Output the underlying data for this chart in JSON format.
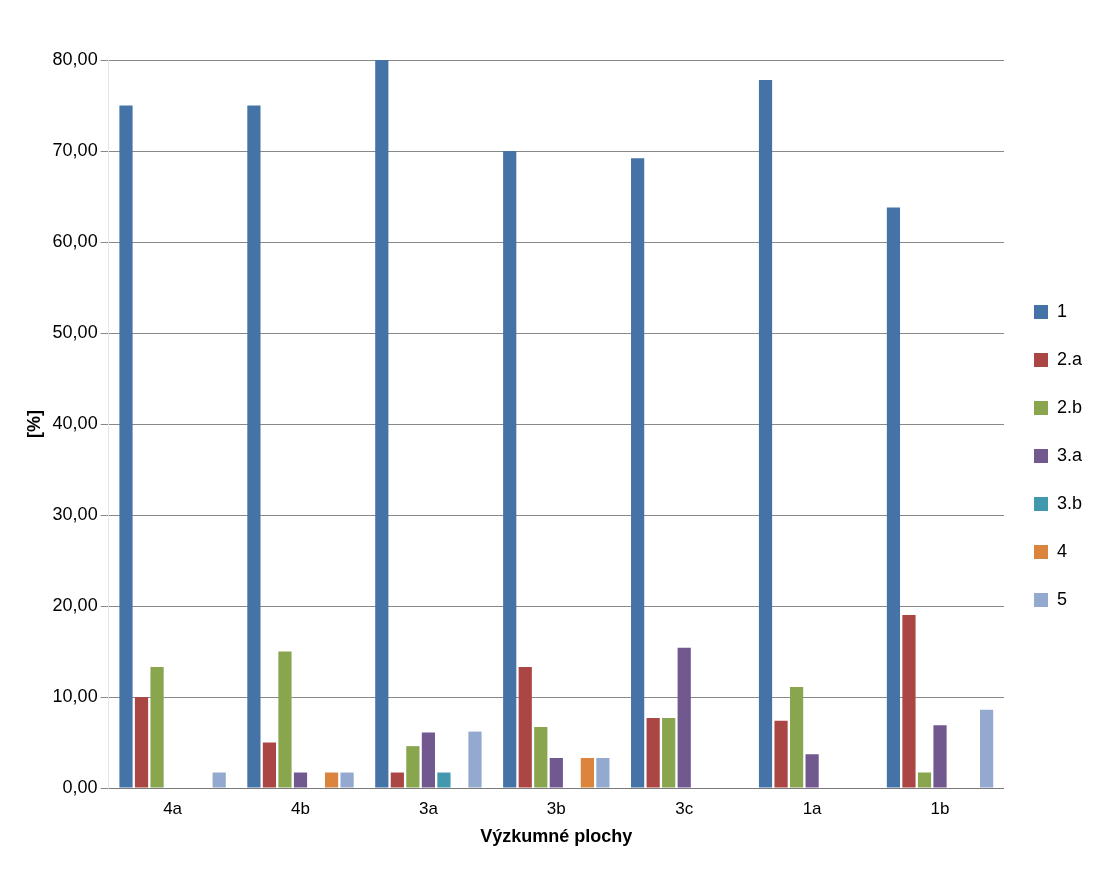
{
  "chart_data": {
    "type": "bar",
    "xlabel": "Výzkumné plochy",
    "ylabel": "[%]",
    "categories": [
      "4a",
      "4b",
      "3a",
      "3b",
      "3c",
      "1a",
      "1b"
    ],
    "series": [
      {
        "name": "1",
        "color": "#4572a7",
        "values": [
          75,
          75,
          80,
          70,
          69.2,
          77.8,
          63.8
        ]
      },
      {
        "name": "2.a",
        "color": "#aa4643",
        "values": [
          10,
          5,
          1.7,
          13.3,
          7.7,
          7.4,
          19
        ]
      },
      {
        "name": "2.b",
        "color": "#89a54e",
        "values": [
          13.3,
          15,
          4.6,
          6.7,
          7.7,
          11.1,
          1.7
        ]
      },
      {
        "name": "3.a",
        "color": "#71588f",
        "values": [
          0,
          1.7,
          6.1,
          3.3,
          15.4,
          3.7,
          6.9
        ]
      },
      {
        "name": "3.b",
        "color": "#4198af",
        "values": [
          0,
          0,
          1.7,
          0,
          0,
          0,
          0
        ]
      },
      {
        "name": "4",
        "color": "#db843d",
        "values": [
          0,
          1.7,
          0,
          3.3,
          0,
          0,
          0
        ]
      },
      {
        "name": "5",
        "color": "#93a9cf",
        "values": [
          1.7,
          1.7,
          6.2,
          3.3,
          0,
          0,
          8.6
        ]
      }
    ],
    "ylim": [
      0,
      80
    ],
    "yticks": [
      {
        "value": 0,
        "label": "0,00"
      },
      {
        "value": 10,
        "label": "10,00"
      },
      {
        "value": 20,
        "label": "20,00"
      },
      {
        "value": 30,
        "label": "30,00"
      },
      {
        "value": 40,
        "label": "40,00"
      },
      {
        "value": 50,
        "label": "50,00"
      },
      {
        "value": 60,
        "label": "60,00"
      },
      {
        "value": 70,
        "label": "70,00"
      },
      {
        "value": 80,
        "label": "80,00"
      }
    ],
    "grid": "y",
    "legend": "right"
  }
}
